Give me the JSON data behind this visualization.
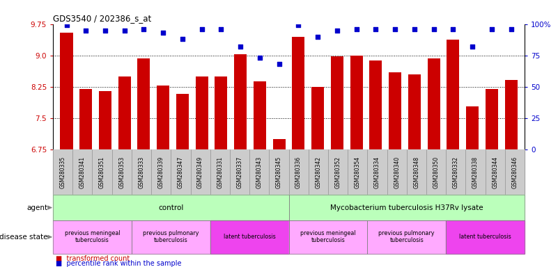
{
  "title": "GDS3540 / 202386_s_at",
  "samples": [
    "GSM280335",
    "GSM280341",
    "GSM280351",
    "GSM280353",
    "GSM280333",
    "GSM280339",
    "GSM280347",
    "GSM280349",
    "GSM280331",
    "GSM280337",
    "GSM280343",
    "GSM280345",
    "GSM280336",
    "GSM280342",
    "GSM280352",
    "GSM280354",
    "GSM280334",
    "GSM280340",
    "GSM280348",
    "GSM280350",
    "GSM280332",
    "GSM280338",
    "GSM280344",
    "GSM280346"
  ],
  "bar_values": [
    9.55,
    8.2,
    8.15,
    8.5,
    8.92,
    8.28,
    8.08,
    8.5,
    8.5,
    9.02,
    8.38,
    7.0,
    9.45,
    8.25,
    8.98,
    9.0,
    8.88,
    8.6,
    8.55,
    8.92,
    9.38,
    7.78,
    8.2,
    8.42
  ],
  "percentile_values": [
    99,
    95,
    95,
    95,
    96,
    93,
    88,
    96,
    96,
    82,
    73,
    68,
    99,
    90,
    95,
    96,
    96,
    96,
    96,
    96,
    96,
    82,
    96,
    96
  ],
  "ylim_left": [
    6.75,
    9.75
  ],
  "ylim_right": [
    0,
    100
  ],
  "yticks_left": [
    6.75,
    7.5,
    8.25,
    9.0,
    9.75
  ],
  "yticks_right": [
    0,
    25,
    50,
    75,
    100
  ],
  "bar_color": "#cc0000",
  "dot_color": "#0000cc",
  "background_color": "#ffffff",
  "agent_groups": [
    {
      "label": "control",
      "start": 0,
      "end": 11,
      "color": "#bbffbb"
    },
    {
      "label": "Mycobacterium tuberculosis H37Rv lysate",
      "start": 12,
      "end": 23,
      "color": "#bbffbb"
    }
  ],
  "disease_groups": [
    {
      "label": "previous meningeal\ntuberculosis",
      "start": 0,
      "end": 3,
      "color": "#ffaaff"
    },
    {
      "label": "previous pulmonary\ntuberculosis",
      "start": 4,
      "end": 7,
      "color": "#ffaaff"
    },
    {
      "label": "latent tuberculosis",
      "start": 8,
      "end": 11,
      "color": "#ee44ee"
    },
    {
      "label": "previous meningeal\ntuberculosis",
      "start": 12,
      "end": 15,
      "color": "#ffaaff"
    },
    {
      "label": "previous pulmonary\ntuberculosis",
      "start": 16,
      "end": 19,
      "color": "#ffaaff"
    },
    {
      "label": "latent tuberculosis",
      "start": 20,
      "end": 23,
      "color": "#ee44ee"
    }
  ],
  "xtick_bg_color": "#cccccc",
  "legend_bar_color": "#cc0000",
  "legend_dot_color": "#0000cc"
}
